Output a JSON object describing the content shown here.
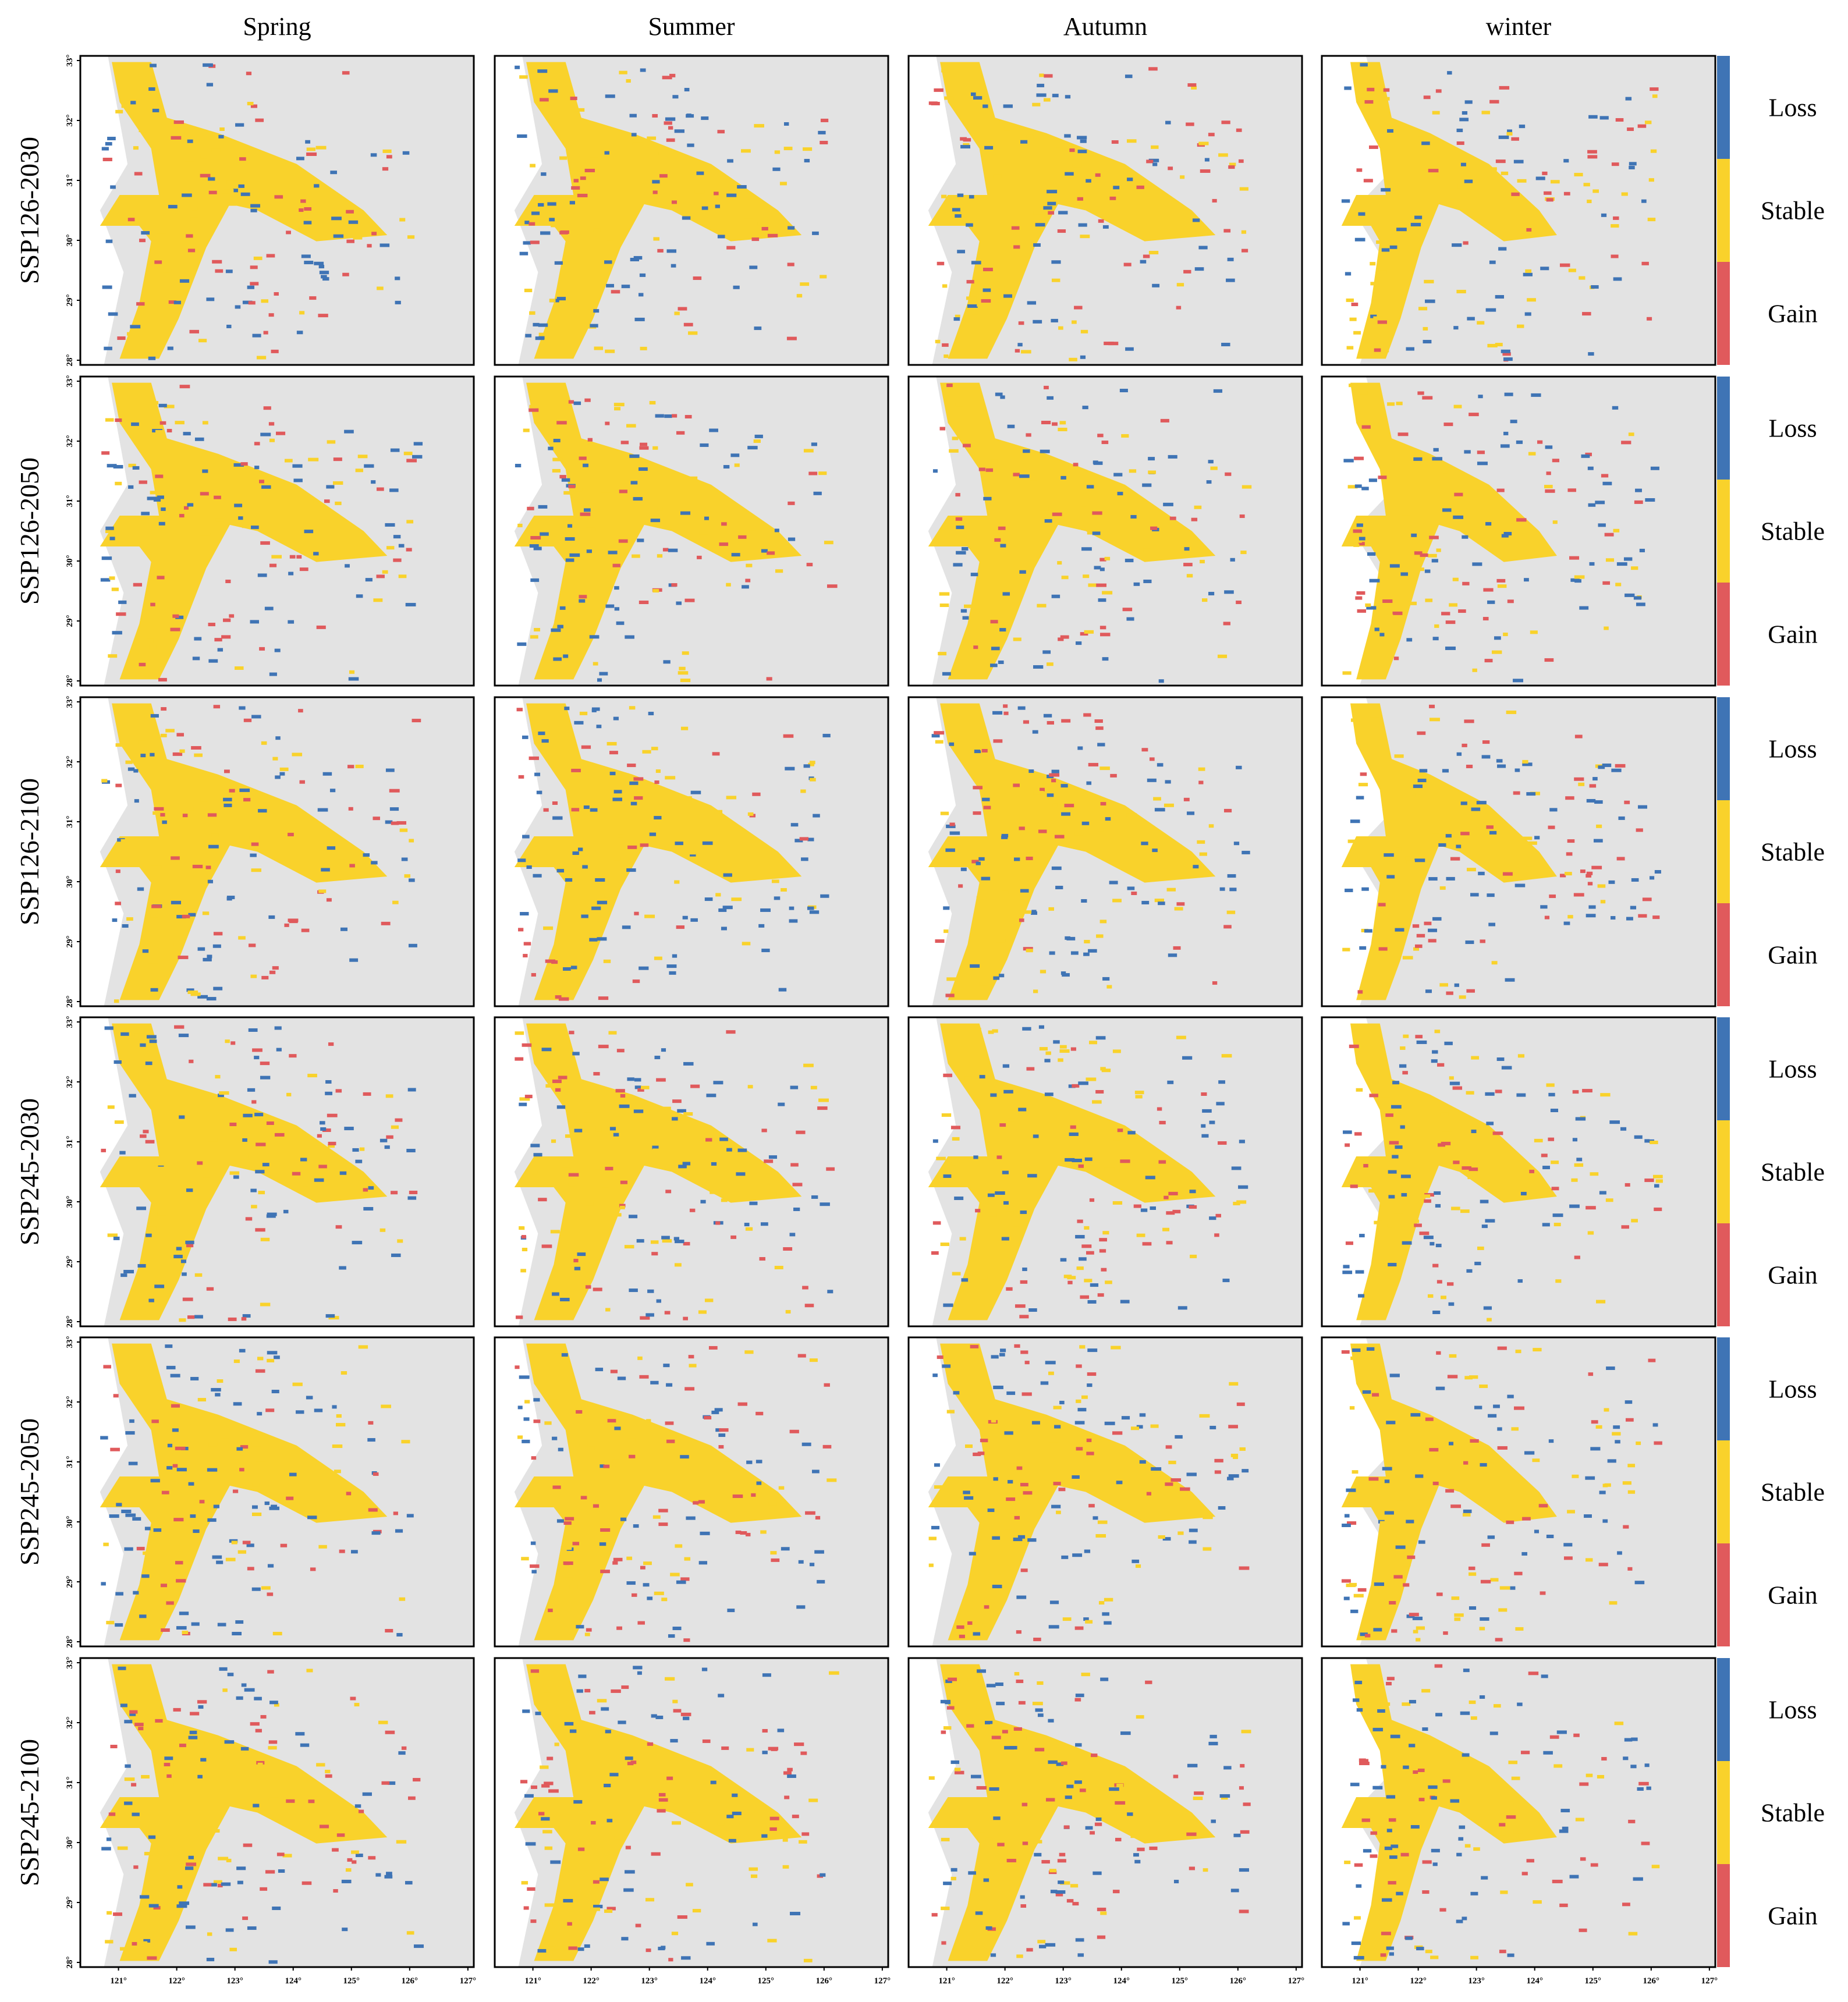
{
  "columns": [
    "Spring",
    "Summer",
    "Autumn",
    "winter"
  ],
  "rows": [
    "SSP126-2030",
    "SSP126-2050",
    "SSP126-2100",
    "SSP245-2030",
    "SSP245-2050",
    "SSP245-2100"
  ],
  "legend": [
    {
      "label": "Loss",
      "color": "#3f74b5"
    },
    {
      "label": "Stable",
      "color": "#f9d22b"
    },
    {
      "label": "Gain",
      "color": "#e05a5c"
    }
  ],
  "x_ticks": [
    "121°",
    "122°",
    "123°",
    "124°",
    "125°",
    "126°",
    "127°"
  ],
  "y_ticks": [
    "33°",
    "32°",
    "31°",
    "30°",
    "29°",
    "28°"
  ]
}
